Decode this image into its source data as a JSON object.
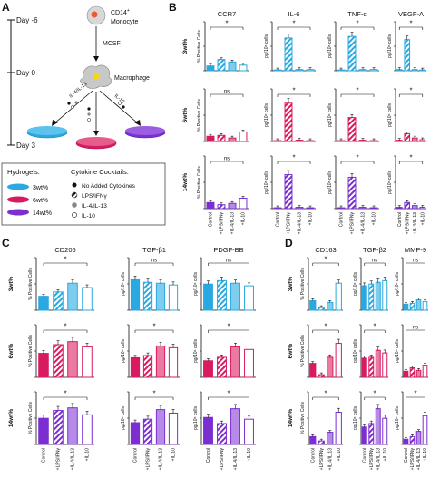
{
  "colors": {
    "blue": "#29a9e0",
    "pink": "#d81b60",
    "purple": "#7b2fd1",
    "panel_bg": "#f7f7f7",
    "panel_border": "#c9c9c9"
  },
  "panel_letters": [
    "A",
    "B",
    "C",
    "D"
  ],
  "schematic": {
    "days": [
      "Day -6",
      "Day 0",
      "Day 3"
    ],
    "cell_top": "CD14",
    "cell_top_sup": "+",
    "cell_top_line2": "Monocyte",
    "mcsf": "MCSF",
    "macrophage": "Macrophage",
    "arrow_labels": [
      "IL-4/IL-13",
      "IL-10"
    ],
    "hydrogels_title": "Hydrogels:",
    "hydrogels": [
      "3wt%",
      "6wt%",
      "14wt%"
    ],
    "cocktails_title": "Cytokine Cocktails:",
    "cocktails": [
      "No Added Cytokines",
      "LPS/IFNγ",
      "IL-4/IL-13",
      "IL-10"
    ]
  },
  "row_labels": [
    "3wt%",
    "6wt%",
    "14wt%"
  ],
  "y_labels": {
    "pct": "% Positive Cells",
    "pg": "pg/10⁶ cells"
  },
  "x_labels": [
    "Control",
    "+LPS/IFNγ",
    "+IL-4/IL-13",
    "+IL-10"
  ],
  "sig": [
    "*",
    "ns"
  ],
  "chart_data": [
    {
      "type": "bar",
      "panel": "B",
      "title": "CCR7",
      "ylabel": "% Positive Cells",
      "categories": [
        "Control",
        "+LPS/IFNγ",
        "+IL-4/IL-13",
        "+IL-10"
      ],
      "series": [
        {
          "gel": "3wt%",
          "values": [
            12,
            28,
            22,
            14
          ],
          "sig": "*"
        },
        {
          "gel": "6wt%",
          "values": [
            12,
            14,
            8,
            22
          ],
          "sig": "ns"
        },
        {
          "gel": "14wt%",
          "values": [
            14,
            9,
            12,
            24
          ],
          "sig": "ns"
        }
      ]
    },
    {
      "type": "bar",
      "panel": "B",
      "title": "IL-6",
      "ylabel": "pg/10⁶ cells",
      "categories": [
        "Control",
        "+LPS/IFNγ",
        "+IL-4/IL-13",
        "+IL-10"
      ],
      "series": [
        {
          "gel": "3wt%",
          "values": [
            2,
            82,
            3,
            3
          ],
          "sig": "*"
        },
        {
          "gel": "6wt%",
          "values": [
            2,
            88,
            3,
            2
          ],
          "sig": "*"
        },
        {
          "gel": "14wt%",
          "values": [
            2,
            78,
            3,
            2
          ],
          "sig": "*"
        }
      ]
    },
    {
      "type": "bar",
      "panel": "B",
      "title": "TNF-α",
      "ylabel": "pg/10⁶ cells",
      "categories": [
        "Control",
        "+LPS/IFNγ",
        "+IL-4/IL-13",
        "+IL-10"
      ],
      "series": [
        {
          "gel": "3wt%",
          "values": [
            2,
            86,
            3,
            3
          ],
          "sig": "*"
        },
        {
          "gel": "6wt%",
          "values": [
            2,
            55,
            3,
            2
          ],
          "sig": "*"
        },
        {
          "gel": "14wt%",
          "values": [
            2,
            72,
            3,
            2
          ],
          "sig": "*"
        }
      ]
    },
    {
      "type": "bar",
      "panel": "B",
      "title": "VEGF-A",
      "ylabel": "pg/10⁶ cells",
      "categories": [
        "Control",
        "+LPS/IFNγ",
        "+IL-4/IL-13",
        "+IL-10"
      ],
      "series": [
        {
          "gel": "3wt%",
          "values": [
            3,
            78,
            3,
            2
          ],
          "sig": "*"
        },
        {
          "gel": "6wt%",
          "values": [
            3,
            18,
            8,
            4
          ],
          "sig": "*"
        },
        {
          "gel": "14wt%",
          "values": [
            3,
            14,
            7,
            3
          ],
          "sig": "*"
        }
      ]
    },
    {
      "type": "bar",
      "panel": "C",
      "title": "CD206",
      "ylabel": "% Positive Cells",
      "categories": [
        "Control",
        "+LPS/IFNγ",
        "+IL-4/IL-13",
        "+IL-10"
      ],
      "series": [
        {
          "gel": "3wt%",
          "values": [
            32,
            42,
            62,
            52
          ],
          "sig": "*"
        },
        {
          "gel": "6wt%",
          "values": [
            55,
            75,
            82,
            70
          ],
          "sig": "*"
        },
        {
          "gel": "14wt%",
          "values": [
            60,
            78,
            84,
            68
          ],
          "sig": "*"
        }
      ]
    },
    {
      "type": "bar",
      "panel": "C",
      "title": "TGF-β1",
      "ylabel": "pg/10⁶ cells",
      "categories": [
        "Control",
        "+LPS/IFNγ",
        "+IL-4/IL-13",
        "+IL-10"
      ],
      "series": [
        {
          "gel": "3wt%",
          "values": [
            70,
            64,
            62,
            58
          ],
          "sig": "ns"
        },
        {
          "gel": "6wt%",
          "values": [
            45,
            50,
            72,
            68
          ],
          "sig": "*"
        },
        {
          "gel": "14wt%",
          "values": [
            50,
            58,
            80,
            72
          ],
          "sig": "*"
        }
      ]
    },
    {
      "type": "bar",
      "panel": "C",
      "title": "PDGF-BB",
      "ylabel": "pg/10⁶ cells",
      "categories": [
        "Control",
        "+LPS/IFNγ",
        "+IL-4/IL-13",
        "+IL-10"
      ],
      "series": [
        {
          "gel": "3wt%",
          "values": [
            60,
            68,
            62,
            56
          ],
          "sig": "ns"
        },
        {
          "gel": "6wt%",
          "values": [
            38,
            46,
            70,
            64
          ],
          "sig": "*"
        },
        {
          "gel": "14wt%",
          "values": [
            62,
            48,
            82,
            58
          ],
          "sig": "*"
        }
      ]
    },
    {
      "type": "bar",
      "panel": "D",
      "title": "CD163",
      "ylabel": "% Positive Cells",
      "categories": [
        "Control",
        "+LPS/IFNγ",
        "+IL-4/IL-13",
        "+IL-10"
      ],
      "series": [
        {
          "gel": "3wt%",
          "values": [
            22,
            6,
            18,
            62
          ],
          "sig": "*"
        },
        {
          "gel": "6wt%",
          "values": [
            32,
            6,
            46,
            78
          ],
          "sig": "*"
        },
        {
          "gel": "14wt%",
          "values": [
            18,
            8,
            28,
            74
          ],
          "sig": "*"
        }
      ]
    },
    {
      "type": "bar",
      "panel": "D",
      "title": "TGF-β2",
      "ylabel": "pg/10⁶ cells",
      "categories": [
        "Control",
        "+LPS/IFNγ",
        "+IL-4/IL-13",
        "+IL-10"
      ],
      "series": [
        {
          "gel": "3wt%",
          "values": [
            56,
            60,
            64,
            68
          ],
          "sig": "ns"
        },
        {
          "gel": "6wt%",
          "values": [
            44,
            46,
            62,
            56
          ],
          "sig": "*"
        },
        {
          "gel": "14wt%",
          "values": [
            40,
            48,
            82,
            60
          ],
          "sig": "*"
        }
      ]
    },
    {
      "type": "bar",
      "panel": "D",
      "title": "MMP-9",
      "ylabel": "pg/10⁶ cells",
      "categories": [
        "Control",
        "+LPS/IFNγ",
        "+IL-4/IL-13",
        "+IL-10"
      ],
      "series": [
        {
          "gel": "3wt%",
          "values": [
            14,
            16,
            24,
            20
          ],
          "sig": "ns"
        },
        {
          "gel": "6wt%",
          "values": [
            14,
            22,
            16,
            28
          ],
          "sig": "ns"
        },
        {
          "gel": "14wt%",
          "values": [
            12,
            18,
            30,
            66
          ],
          "sig": "*"
        }
      ]
    }
  ]
}
